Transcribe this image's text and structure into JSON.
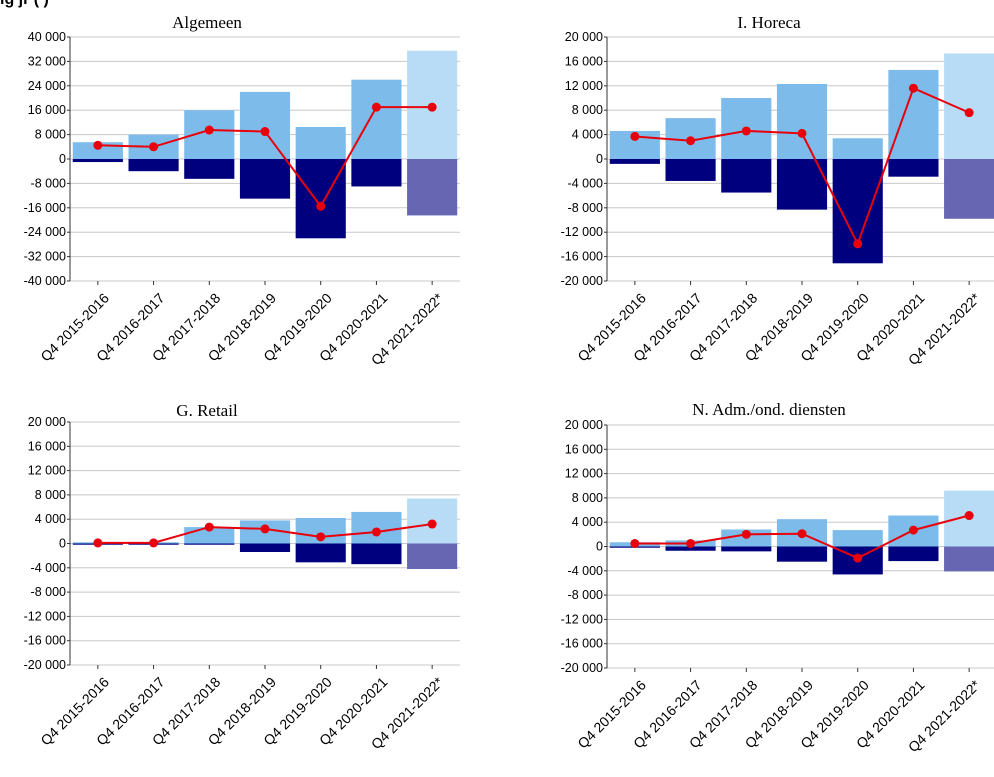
{
  "page_title": "ig                                          jr (                  )",
  "colors": {
    "positive": "#7dbcea",
    "positive_forecast": "#b8dcf5",
    "negative": "#00007f",
    "negative_forecast": "#6666b2",
    "net_line": "#e8000b",
    "grid": "#c8c8c8"
  },
  "chart_data": [
    {
      "type": "bar",
      "title": "Algemeen",
      "categories": [
        "Q4 2015-2016",
        "Q4 2016-2017",
        "Q4 2017-2018",
        "Q4 2018-2019",
        "Q4 2019-2020",
        "Q4 2020-2021",
        "Q4 2021-2022*"
      ],
      "series": [
        {
          "values": [
            5500,
            8000,
            16000,
            22000,
            10500,
            26000,
            35500
          ]
        },
        {
          "values": [
            -1000,
            -4000,
            -6500,
            -13000,
            -26000,
            -9000,
            -18500
          ]
        },
        {
          "values": [
            4500,
            4000,
            9500,
            9000,
            -15500,
            17000,
            17000
          ]
        }
      ],
      "ylim": [
        -40000,
        40000
      ],
      "yticks": [
        "40 000",
        "32 000",
        "24 000",
        "16 000",
        "8 000",
        "0",
        "-8 000",
        "-16 000",
        "-24 000",
        "-32 000",
        "-40 000"
      ],
      "forecast_last_category": true,
      "grid": true
    },
    {
      "type": "bar",
      "title": "I. Horeca",
      "categories": [
        "Q4 2015-2016",
        "Q4 2016-2017",
        "Q4 2017-2018",
        "Q4 2018-2019",
        "Q4 2019-2020",
        "Q4 2020-2021",
        "Q4 2021-2022*"
      ],
      "series": [
        {
          "values": [
            4600,
            6700,
            10000,
            12300,
            3400,
            14600,
            17300
          ]
        },
        {
          "values": [
            -800,
            -3600,
            -5500,
            -8300,
            -17100,
            -2900,
            -9800
          ]
        },
        {
          "values": [
            3700,
            3000,
            4600,
            4200,
            -13900,
            11600,
            7600
          ]
        }
      ],
      "ylim": [
        -20000,
        20000
      ],
      "yticks": [
        "20 000",
        "16 000",
        "12 000",
        "8 000",
        "4 000",
        "0",
        "-4 000",
        "-8 000",
        "-12 000",
        "-16 000",
        "-20 000"
      ],
      "forecast_last_category": true,
      "grid": true
    },
    {
      "type": "bar",
      "title": "G. Retail",
      "categories": [
        "Q4 2015-2016",
        "Q4 2016-2017",
        "Q4 2017-2018",
        "Q4 2018-2019",
        "Q4 2019-2020",
        "Q4 2020-2021",
        "Q4 2021-2022*"
      ],
      "series": [
        {
          "values": [
            200,
            200,
            2700,
            3800,
            4200,
            5200,
            7400
          ]
        },
        {
          "values": [
            -200,
            -200,
            -200,
            -1400,
            -3100,
            -3400,
            -4200
          ]
        },
        {
          "values": [
            100,
            100,
            2700,
            2400,
            1100,
            1900,
            3200
          ]
        }
      ],
      "ylim": [
        -20000,
        20000
      ],
      "yticks": [
        "20 000",
        "16 000",
        "12 000",
        "8 000",
        "4 000",
        "0",
        "-4 000",
        "-8 000",
        "-12 000",
        "-16 000",
        "-20 000"
      ],
      "forecast_last_category": true,
      "grid": true
    },
    {
      "type": "bar",
      "title": "N. Adm./ond. diensten",
      "categories": [
        "Q4 2015-2016",
        "Q4 2016-2017",
        "Q4 2017-2018",
        "Q4 2018-2019",
        "Q4 2019-2020",
        "Q4 2020-2021",
        "Q4 2021-2022*"
      ],
      "series": [
        {
          "values": [
            700,
            1000,
            2800,
            4500,
            2700,
            5100,
            9200
          ]
        },
        {
          "values": [
            -200,
            -700,
            -800,
            -2500,
            -4600,
            -2400,
            -4100
          ]
        },
        {
          "values": [
            500,
            500,
            2000,
            2100,
            -1900,
            2700,
            5100
          ]
        }
      ],
      "ylim": [
        -20000,
        20000
      ],
      "yticks": [
        "20 000",
        "16 000",
        "12 000",
        "8 000",
        "4 000",
        "0",
        "-4 000",
        "-8 000",
        "-12 000",
        "-16 000",
        "-20 000"
      ],
      "forecast_last_category": true,
      "grid": true
    }
  ]
}
